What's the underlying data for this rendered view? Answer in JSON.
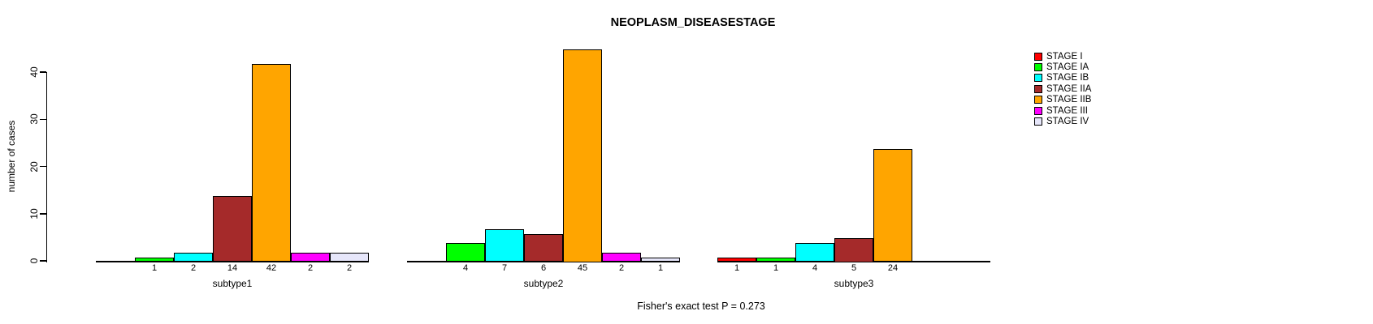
{
  "chart_data": {
    "type": "bar",
    "title": "NEOPLASM_DISEASESTAGE",
    "ylabel": "number of cases",
    "xlabel": "",
    "footer": "Fisher's exact test P = 0.273",
    "ylim": [
      0,
      45
    ],
    "yticks": [
      0,
      10,
      20,
      30,
      40
    ],
    "grid": false,
    "legend_position": "right",
    "categories": [
      "subtype1",
      "subtype2",
      "subtype3"
    ],
    "series": [
      {
        "name": "STAGE I",
        "color": "#FF0000",
        "values": [
          0,
          0,
          1
        ]
      },
      {
        "name": "STAGE IA",
        "color": "#00FF00",
        "values": [
          1,
          4,
          1
        ]
      },
      {
        "name": "STAGE IB",
        "color": "#00FFFF",
        "values": [
          2,
          7,
          4
        ]
      },
      {
        "name": "STAGE IIA",
        "color": "#A52A2A",
        "values": [
          14,
          6,
          5
        ]
      },
      {
        "name": "STAGE IIB",
        "color": "#FFA500",
        "values": [
          42,
          45,
          24
        ]
      },
      {
        "name": "STAGE III",
        "color": "#FF00FF",
        "values": [
          2,
          2,
          0
        ]
      },
      {
        "name": "STAGE IV",
        "color": "#E6E6FA",
        "values": [
          2,
          1,
          0
        ]
      }
    ],
    "bar_value_labels": "shown under each non-zero bar"
  }
}
